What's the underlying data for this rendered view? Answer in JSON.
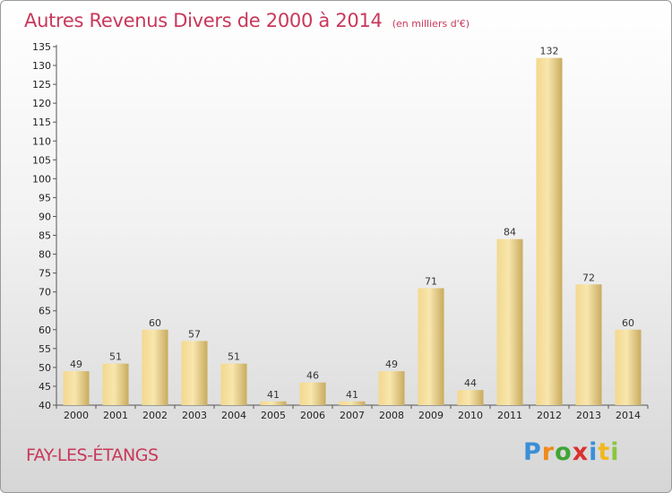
{
  "title": "Autres Revenus Divers de 2000 à 2014",
  "unit": "(en milliers d'€)",
  "location": "FAY-LES-ÉTANGS",
  "logo": {
    "letters": [
      "P",
      "r",
      "o",
      "x",
      "i",
      "t",
      "i"
    ],
    "colors": [
      "#3a8fd8",
      "#f08a1c",
      "#3fa535",
      "#d8322f",
      "#3a8fd8",
      "#f0b81c",
      "#8cc63f"
    ]
  },
  "colors": {
    "title": "#c8385a",
    "bar_light": "#f8e2a2",
    "bar_dark": "#c8aa5e"
  },
  "chart_data": {
    "type": "bar",
    "title": "Autres Revenus Divers de 2000 à 2014",
    "categories": [
      "2000",
      "2001",
      "2002",
      "2003",
      "2004",
      "2005",
      "2006",
      "2007",
      "2008",
      "2009",
      "2010",
      "2011",
      "2012",
      "2013",
      "2014"
    ],
    "values": [
      49,
      51,
      60,
      57,
      51,
      41,
      46,
      41,
      49,
      71,
      44,
      84,
      132,
      72,
      60
    ],
    "ylim": [
      40,
      135
    ],
    "yticks": [
      40,
      45,
      50,
      55,
      60,
      65,
      70,
      75,
      80,
      85,
      90,
      95,
      100,
      105,
      110,
      115,
      120,
      125,
      130,
      135
    ],
    "grid": false,
    "legend": "none"
  }
}
